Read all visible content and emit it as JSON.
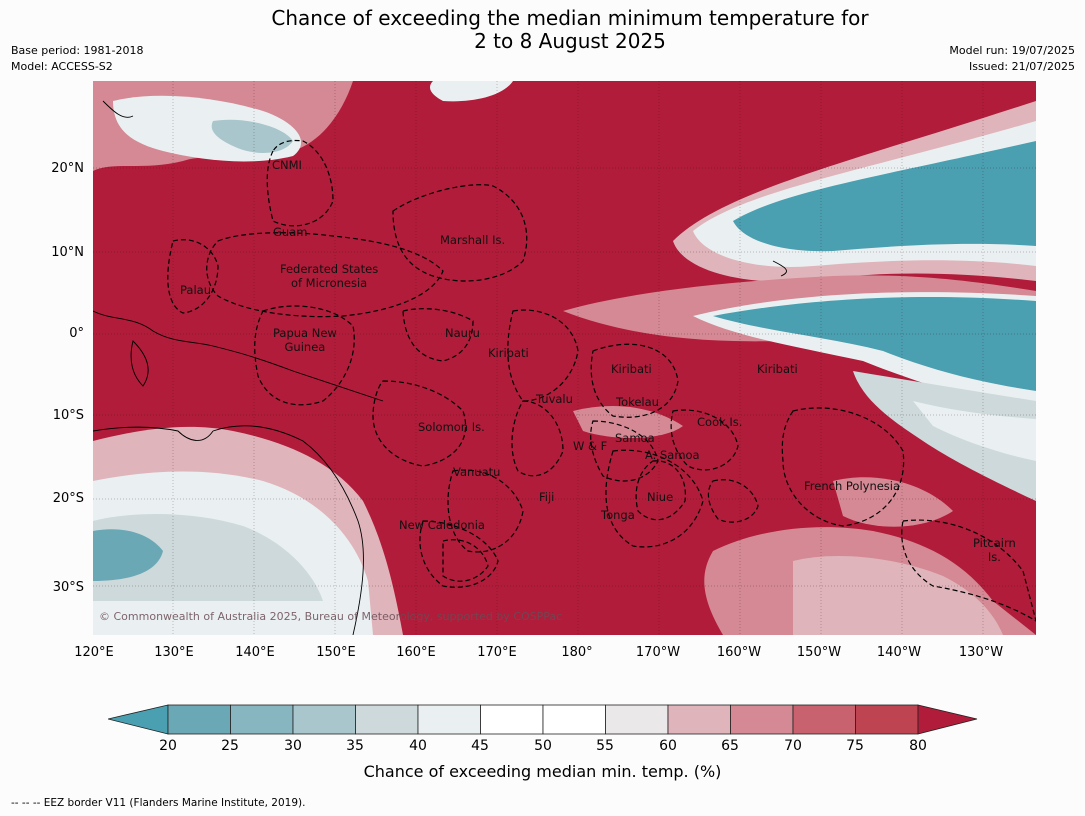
{
  "title": {
    "line1": "Chance of exceeding the median minimum temperature for",
    "line2": "2 to 8 August 2025"
  },
  "meta": {
    "base_period": "Base period: 1981-2018",
    "model": "Model: ACCESS-S2",
    "model_run": "Model run: 19/07/2025",
    "issued": "Issued: 21/07/2025"
  },
  "credit": "© Commonwealth of Australia 2025, Bureau of Meteorology, supported by COSPPac",
  "lat_labels": [
    "20°N",
    "10°N",
    "0°",
    "10°S",
    "20°S",
    "30°S"
  ],
  "lon_labels": [
    "120°E",
    "130°E",
    "140°E",
    "150°E",
    "160°E",
    "170°E",
    "180°",
    "170°W",
    "160°W",
    "150°W",
    "140°W",
    "130°W"
  ],
  "places": {
    "cnmi": "CNMI",
    "guam": "Guam",
    "marshall": "Marshall Is.",
    "fsm_1": "Federated States",
    "fsm_2": "of Micronesia",
    "palau": "Palau",
    "png_1": "Papua New",
    "png_2": "Guinea",
    "nauru": "Nauru",
    "kiribati_w": "Kiribati",
    "kiribati_c": "Kiribati",
    "kiribati_e": "Kiribati",
    "tuvalu": "Tuvalu",
    "tokelau": "Tokelau",
    "cook": "Cook Is.",
    "solomon": "Solomon Is.",
    "wf": "W & F",
    "samoa": "Samoa",
    "asamoa": "A. Samoa",
    "vanuatu": "Vanuatu",
    "fiji": "Fiji",
    "niue": "Niue",
    "tonga": "Tonga",
    "newcal": "New Caledonia",
    "frpoly": "French Polynesia",
    "pitcairn_1": "Pitcairn",
    "pitcairn_2": "Is."
  },
  "colorbar": {
    "ticks": [
      "20",
      "25",
      "30",
      "35",
      "40",
      "45",
      "50",
      "55",
      "60",
      "65",
      "70",
      "75",
      "80"
    ],
    "label": "Chance of exceeding median min. temp. (%)",
    "colors": {
      "lt20": "#4a9fb0",
      "20-25": "#6aa8b6",
      "25-30": "#87b5c0",
      "30-35": "#a9c6cc",
      "35-40": "#cdd9db",
      "40-45": "#eaf0f1",
      "45-50": "#ffffff",
      "50-55": "#ffffff",
      "55-60": "#ebe8e9",
      "60-65": "#dfb5bb",
      "65-70": "#d48994",
      "70-75": "#c9626f",
      "75-80": "#bd4450",
      "gt80": "#b01c3a"
    }
  },
  "footnote": "--  --  -- EEZ border V11 (Flanders Marine Institute, 2019)."
}
